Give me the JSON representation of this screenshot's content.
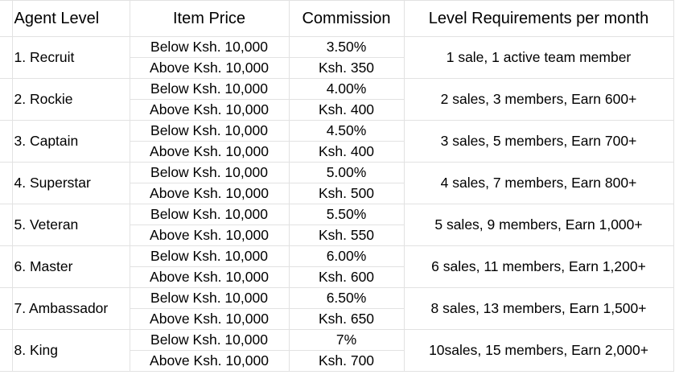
{
  "headers": {
    "agent_level": "Agent Level",
    "item_price": "Item Price",
    "commission": "Commission",
    "requirements": "Level Requirements per month"
  },
  "rows": [
    {
      "level": "1. Recruit",
      "below": "Below Ksh. 10,000",
      "above": "Above Ksh. 10,000",
      "comm_below": "3.50%",
      "comm_above": "Ksh. 350",
      "req": "1 sale, 1 active team member"
    },
    {
      "level": "2. Rockie",
      "below": "Below Ksh. 10,000",
      "above": "Above Ksh. 10,000",
      "comm_below": "4.00%",
      "comm_above": "Ksh. 400",
      "req": "2 sales, 3 members, Earn 600+"
    },
    {
      "level": "3. Captain",
      "below": "Below Ksh. 10,000",
      "above": "Above Ksh. 10,000",
      "comm_below": "4.50%",
      "comm_above": "Ksh. 400",
      "req": "3 sales, 5 members, Earn 700+"
    },
    {
      "level": "4. Superstar",
      "below": "Below Ksh. 10,000",
      "above": "Above Ksh. 10,000",
      "comm_below": "5.00%",
      "comm_above": "Ksh. 500",
      "req": "4 sales, 7 members, Earn 800+"
    },
    {
      "level": "5. Veteran",
      "below": "Below Ksh. 10,000",
      "above": "Above Ksh. 10,000",
      "comm_below": "5.50%",
      "comm_above": "Ksh. 550",
      "req": "5 sales, 9 members, Earn 1,000+"
    },
    {
      "level": "6. Master",
      "below": "Below Ksh. 10,000",
      "above": "Above Ksh. 10,000",
      "comm_below": "6.00%",
      "comm_above": "Ksh. 600",
      "req": "6 sales, 11 members, Earn 1,200+"
    },
    {
      "level": "7. Ambassador",
      "below": "Below Ksh. 10,000",
      "above": "Above Ksh. 10,000",
      "comm_below": "6.50%",
      "comm_above": "Ksh. 650",
      "req": "8 sales, 13 members, Earn 1,500+"
    },
    {
      "level": "8. King",
      "below": "Below Ksh. 10,000",
      "above": "Above Ksh. 10,000",
      "comm_below": "7%",
      "comm_above": "Ksh. 700",
      "req": "10sales, 15 members, Earn 2,000+"
    }
  ]
}
